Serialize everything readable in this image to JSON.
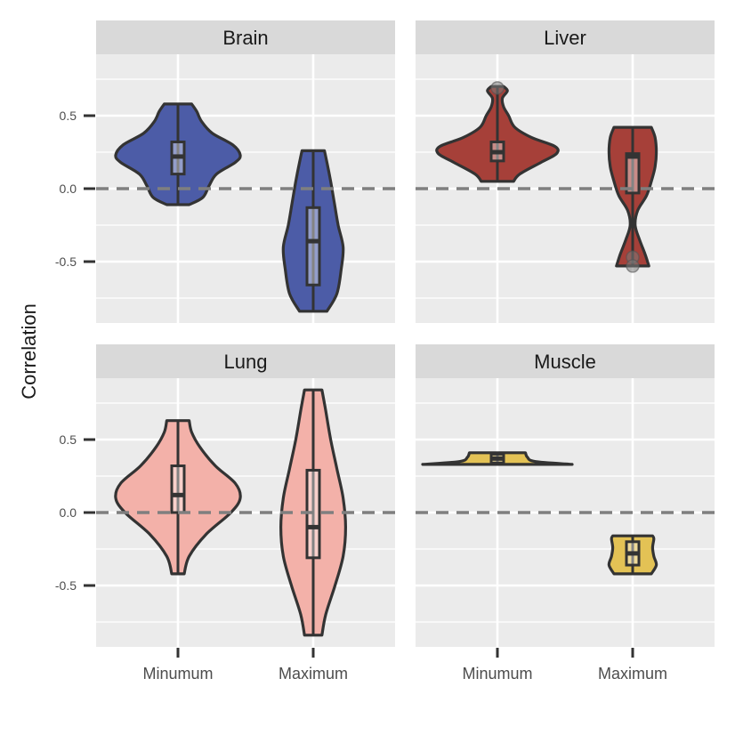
{
  "chart_data": {
    "type": "violin",
    "facets": [
      "Brain",
      "Liver",
      "Lung",
      "Muscle"
    ],
    "categories": [
      "Minumum",
      "Maximum"
    ],
    "ylabel": "Correlation",
    "xlabel": "",
    "y_ticks": [
      0.5,
      0.0,
      -0.5
    ],
    "y_tick_labels": [
      "0.5",
      "0.0",
      "-0.5"
    ],
    "ylim": [
      -0.9,
      0.95
    ],
    "reference_line": 0.0,
    "colors": {
      "Brain": "#4657a4",
      "Liver": "#a33a33",
      "Lung": "#f3aea6",
      "Muscle": "#e2c04f"
    },
    "panels": [
      {
        "facet": "Brain",
        "violins": [
          {
            "category": "Minumum",
            "min": -0.11,
            "max": 0.58,
            "density": [
              [
                -0.11,
                0.18
              ],
              [
                -0.06,
                0.4
              ],
              [
                0.02,
                0.5
              ],
              [
                0.1,
                0.62
              ],
              [
                0.18,
                0.92
              ],
              [
                0.23,
                1.0
              ],
              [
                0.3,
                0.88
              ],
              [
                0.38,
                0.55
              ],
              [
                0.46,
                0.38
              ],
              [
                0.53,
                0.3
              ],
              [
                0.58,
                0.22
              ]
            ],
            "box": {
              "lower": 0.1,
              "median": 0.22,
              "upper": 0.32
            },
            "outliers": []
          },
          {
            "category": "Maximum",
            "min": -0.84,
            "max": 0.26,
            "density": [
              [
                -0.84,
                0.22
              ],
              [
                -0.72,
                0.38
              ],
              [
                -0.55,
                0.45
              ],
              [
                -0.4,
                0.48
              ],
              [
                -0.25,
                0.4
              ],
              [
                -0.1,
                0.34
              ],
              [
                0.05,
                0.28
              ],
              [
                0.18,
                0.22
              ],
              [
                0.26,
                0.18
              ]
            ],
            "box": {
              "lower": -0.66,
              "median": -0.36,
              "upper": -0.13
            },
            "outliers": []
          }
        ]
      },
      {
        "facet": "Liver",
        "violins": [
          {
            "category": "Minumum",
            "min": 0.05,
            "max": 0.7,
            "density": [
              [
                0.05,
                0.26
              ],
              [
                0.1,
                0.36
              ],
              [
                0.18,
                0.7
              ],
              [
                0.24,
                0.95
              ],
              [
                0.29,
                0.92
              ],
              [
                0.35,
                0.55
              ],
              [
                0.42,
                0.28
              ],
              [
                0.5,
                0.18
              ],
              [
                0.56,
                0.1
              ],
              [
                0.62,
                0.08
              ],
              [
                0.67,
                0.16
              ],
              [
                0.7,
                0.1
              ]
            ],
            "box": {
              "lower": 0.19,
              "median": 0.25,
              "upper": 0.32
            },
            "outliers": [
              0.69
            ]
          },
          {
            "category": "Maximum",
            "min": -0.53,
            "max": 0.42,
            "density": [
              [
                -0.53,
                0.26
              ],
              [
                -0.45,
                0.2
              ],
              [
                -0.35,
                0.11
              ],
              [
                -0.25,
                0.04
              ],
              [
                -0.15,
                0.08
              ],
              [
                -0.05,
                0.22
              ],
              [
                0.05,
                0.3
              ],
              [
                0.15,
                0.36
              ],
              [
                0.25,
                0.38
              ],
              [
                0.35,
                0.36
              ],
              [
                0.42,
                0.3
              ]
            ],
            "box": {
              "lower": -0.03,
              "median": 0.22,
              "upper": 0.24
            },
            "outliers": [
              -0.47,
              -0.53
            ]
          }
        ]
      },
      {
        "facet": "Lung",
        "violins": [
          {
            "category": "Minumum",
            "min": -0.42,
            "max": 0.63,
            "density": [
              [
                -0.42,
                0.1
              ],
              [
                -0.3,
                0.18
              ],
              [
                -0.15,
                0.45
              ],
              [
                0.0,
                0.85
              ],
              [
                0.1,
                1.0
              ],
              [
                0.2,
                0.92
              ],
              [
                0.32,
                0.6
              ],
              [
                0.45,
                0.35
              ],
              [
                0.55,
                0.22
              ],
              [
                0.63,
                0.18
              ]
            ],
            "box": {
              "lower": 0.0,
              "median": 0.12,
              "upper": 0.32
            },
            "outliers": []
          },
          {
            "category": "Maximum",
            "min": -0.84,
            "max": 0.84,
            "density": [
              [
                -0.84,
                0.14
              ],
              [
                -0.7,
                0.2
              ],
              [
                -0.5,
                0.35
              ],
              [
                -0.3,
                0.48
              ],
              [
                -0.1,
                0.52
              ],
              [
                0.1,
                0.48
              ],
              [
                0.3,
                0.38
              ],
              [
                0.5,
                0.28
              ],
              [
                0.7,
                0.2
              ],
              [
                0.84,
                0.14
              ]
            ],
            "box": {
              "lower": -0.31,
              "median": -0.1,
              "upper": 0.29
            },
            "outliers": []
          }
        ]
      },
      {
        "facet": "Muscle",
        "violins": [
          {
            "category": "Minumum",
            "min": 0.33,
            "max": 0.41,
            "density": [
              [
                0.33,
                1.2
              ],
              [
                0.35,
                0.6
              ],
              [
                0.38,
                0.48
              ],
              [
                0.41,
                0.45
              ]
            ],
            "box": {
              "lower": 0.34,
              "median": 0.37,
              "upper": 0.4
            },
            "outliers": []
          },
          {
            "category": "Maximum",
            "min": -0.42,
            "max": -0.16,
            "density": [
              [
                -0.42,
                0.3
              ],
              [
                -0.36,
                0.38
              ],
              [
                -0.3,
                0.34
              ],
              [
                -0.24,
                0.32
              ],
              [
                -0.18,
                0.34
              ],
              [
                -0.16,
                0.32
              ]
            ],
            "box": {
              "lower": -0.36,
              "median": -0.28,
              "upper": -0.2
            },
            "outliers": []
          }
        ]
      }
    ]
  }
}
